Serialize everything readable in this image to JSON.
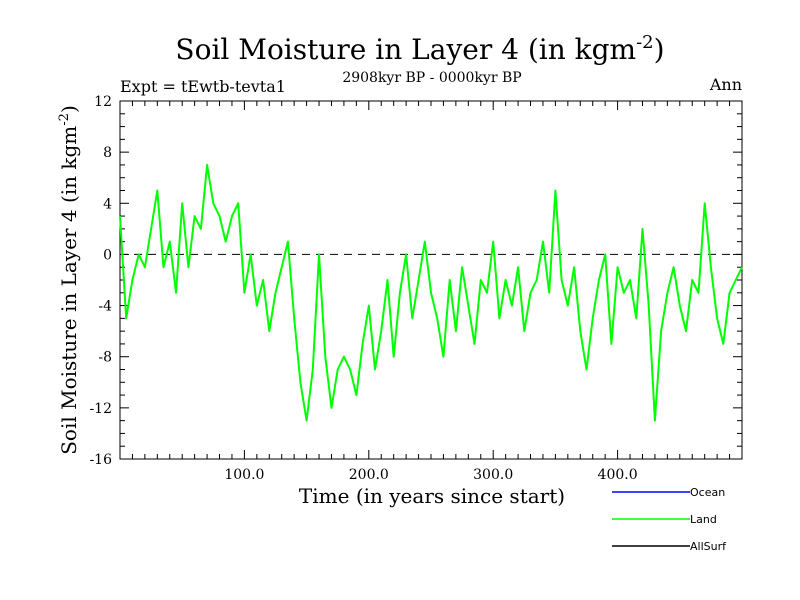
{
  "chart_data": {
    "type": "line",
    "title": "Soil Moisture in Layer 4 (in kgm",
    "title_sup": "-2",
    "title_close": ")",
    "experiment_label": "Expt = tEwtb-tevta1",
    "period_label": "2908kyr BP - 0000kyr BP",
    "season_label": "Ann",
    "xlabel": "Time (in years since start)",
    "ylabel": "Soil Moisture in Layer 4 (in kgm",
    "ylabel_sup": "-2",
    "ylabel_close": ")",
    "xlim": [
      0,
      500
    ],
    "ylim": [
      -16,
      12
    ],
    "x_ticks": [
      100,
      200,
      300,
      400
    ],
    "x_tick_labels": [
      "100.0",
      "200.0",
      "300.0",
      "400.0"
    ],
    "y_ticks": [
      -16,
      -12,
      -8,
      -4,
      0,
      4,
      8,
      12
    ],
    "y_tick_labels": [
      "-16",
      "-12",
      "-8",
      "-4",
      "0",
      "4",
      "8",
      "12"
    ],
    "zero_line": 0,
    "legend": [
      {
        "name": "Ocean",
        "color": "#0000ff"
      },
      {
        "name": "Land",
        "color": "#00ff00"
      },
      {
        "name": "AllSurf",
        "color": "#000000"
      }
    ],
    "series": [
      {
        "name": "Land",
        "color": "#00ff00",
        "x": [
          0,
          5,
          10,
          15,
          20,
          25,
          30,
          35,
          40,
          45,
          50,
          55,
          60,
          65,
          70,
          75,
          80,
          85,
          90,
          95,
          100,
          105,
          110,
          115,
          120,
          125,
          130,
          135,
          140,
          145,
          150,
          155,
          160,
          165,
          170,
          175,
          180,
          185,
          190,
          195,
          200,
          205,
          210,
          215,
          220,
          225,
          230,
          235,
          240,
          245,
          250,
          255,
          260,
          265,
          270,
          275,
          280,
          285,
          290,
          295,
          300,
          305,
          310,
          315,
          320,
          325,
          330,
          335,
          340,
          345,
          350,
          355,
          360,
          365,
          370,
          375,
          380,
          385,
          390,
          395,
          400,
          405,
          410,
          415,
          420,
          425,
          430,
          435,
          440,
          445,
          450,
          455,
          460,
          465,
          470,
          475,
          480,
          485,
          490,
          495,
          500
        ],
        "y": [
          3,
          -5,
          -2,
          0,
          -1,
          2,
          5,
          -1,
          1,
          -3,
          4,
          -1,
          3,
          2,
          7,
          4,
          3,
          1,
          3,
          4,
          -3,
          0,
          -4,
          -2,
          -6,
          -3,
          -1,
          1,
          -5,
          -10,
          -13,
          -9,
          0,
          -8,
          -12,
          -9,
          -8,
          -9,
          -11,
          -7,
          -4,
          -9,
          -6,
          -2,
          -8,
          -3,
          0,
          -5,
          -2,
          1,
          -3,
          -5,
          -8,
          -2,
          -6,
          -1,
          -4,
          -7,
          -2,
          -3,
          1,
          -5,
          -2,
          -4,
          -1,
          -6,
          -3,
          -2,
          1,
          -3,
          5,
          -2,
          -4,
          -1,
          -6,
          -9,
          -5,
          -2,
          0,
          -7,
          -1,
          -3,
          -2,
          -5,
          2,
          -4,
          -13,
          -6,
          -3,
          -1,
          -4,
          -6,
          -2,
          -3,
          4,
          -1,
          -5,
          -7,
          -3,
          -2,
          -1
        ]
      }
    ]
  }
}
